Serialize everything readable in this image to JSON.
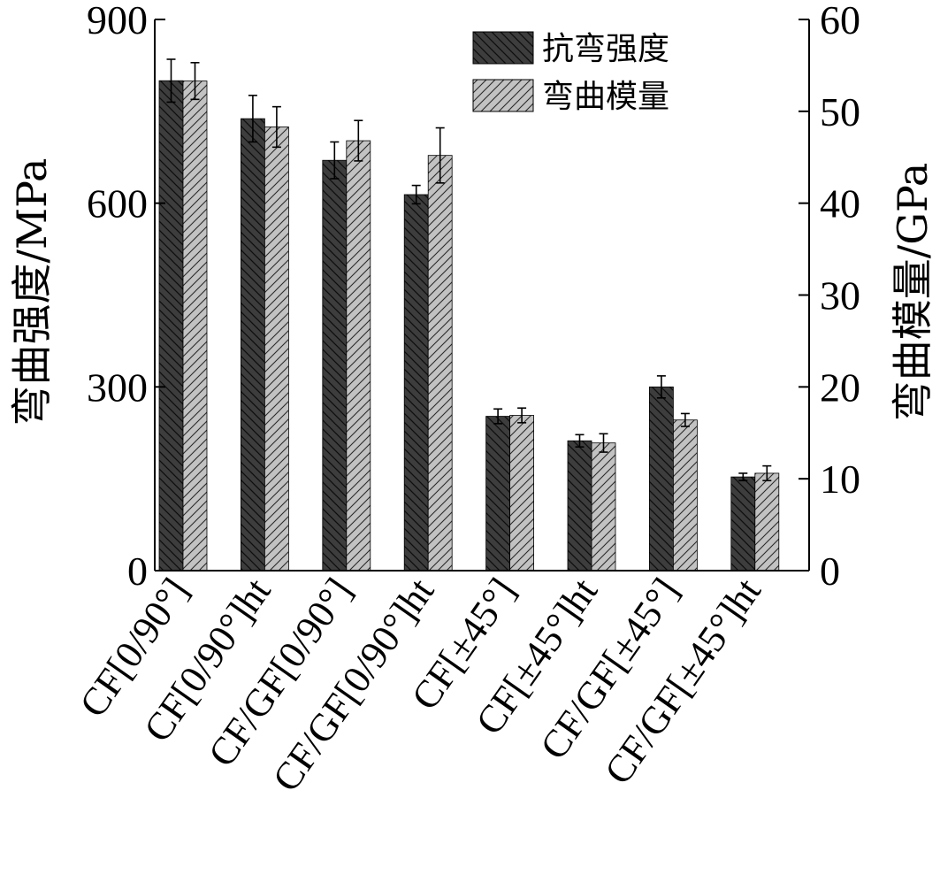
{
  "chart_data": {
    "type": "bar",
    "categories": [
      "CF[0/90°]",
      "CF[0/90°]ht",
      "CF/GF[0/90°]",
      "CF/GF[0/90°]ht",
      "CF[±45°]",
      "CF[±45°]ht",
      "CF/GF[±45°]",
      "CF/GF[±45°]ht"
    ],
    "series": [
      {
        "name": "抗弯强度",
        "axis": "left",
        "color": "#3d3d3d",
        "hatch": "backslash",
        "values": [
          800,
          738,
          670,
          614,
          252,
          212,
          300,
          153
        ],
        "errors": [
          35,
          38,
          30,
          15,
          12,
          10,
          18,
          6
        ]
      },
      {
        "name": "弯曲模量",
        "axis": "right",
        "color": "#c0c0c0",
        "hatch": "slash",
        "values": [
          53.3,
          48.3,
          46.8,
          45.2,
          16.9,
          13.9,
          16.4,
          10.6
        ],
        "errors": [
          2.0,
          2.2,
          2.2,
          3.0,
          0.8,
          1.0,
          0.7,
          0.8
        ]
      }
    ],
    "ylabel": "弯曲强度/MPa",
    "ylabel_right": "弯曲模量/GPa",
    "ylim": [
      0,
      900
    ],
    "ylim_right": [
      0,
      60
    ],
    "yticks": [
      0,
      300,
      600,
      900
    ],
    "yticks_right": [
      0,
      10,
      20,
      30,
      40,
      50,
      60
    ],
    "grid": false,
    "legend_position": "top-right"
  }
}
